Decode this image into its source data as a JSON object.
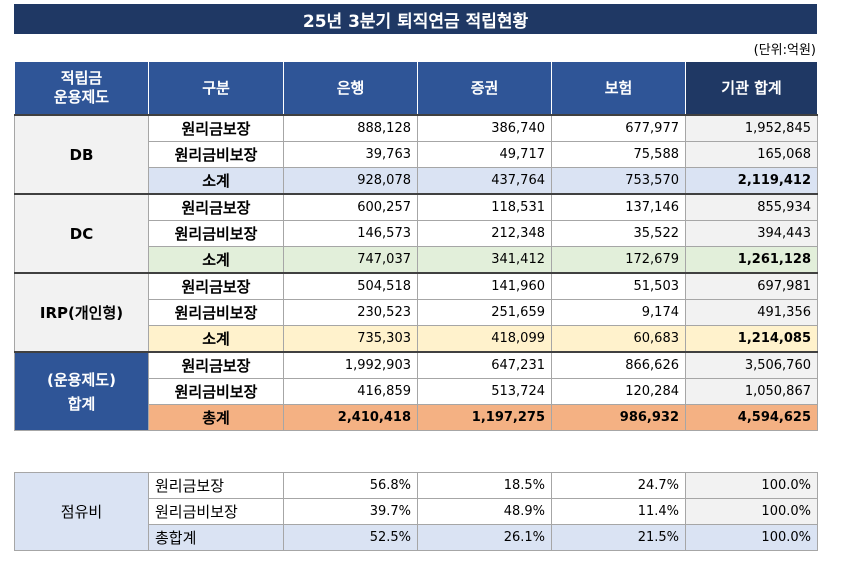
{
  "title": "25년 3분기 퇴직연금 적립현황",
  "unit": "(단위:억원)",
  "headers": [
    "적립금\n운용제도",
    "구분",
    "은행",
    "증권",
    "보험",
    "기관 합계"
  ],
  "groups": [
    {
      "name": "DB",
      "rows": [
        {
          "label": "원리금보장",
          "values": [
            "888,128",
            "386,740",
            "677,977",
            "1,952,845"
          ]
        },
        {
          "label": "원리금비보장",
          "values": [
            "39,763",
            "49,717",
            "75,588",
            "165,068"
          ]
        },
        {
          "label": "소계",
          "values": [
            "928,078",
            "437,764",
            "753,570",
            "2,119,412"
          ]
        }
      ]
    },
    {
      "name": "DC",
      "rows": [
        {
          "label": "원리금보장",
          "values": [
            "600,257",
            "118,531",
            "137,146",
            "855,934"
          ]
        },
        {
          "label": "원리금비보장",
          "values": [
            "146,573",
            "212,348",
            "35,522",
            "394,443"
          ]
        },
        {
          "label": "소계",
          "values": [
            "747,037",
            "341,412",
            "172,679",
            "1,261,128"
          ]
        }
      ]
    },
    {
      "name": "IRP(개인형)",
      "rows": [
        {
          "label": "원리금보장",
          "values": [
            "504,518",
            "141,960",
            "51,503",
            "697,981"
          ]
        },
        {
          "label": "원리금비보장",
          "values": [
            "230,523",
            "251,659",
            "9,174",
            "491,356"
          ]
        },
        {
          "label": "소계",
          "values": [
            "735,303",
            "418,099",
            "60,683",
            "1,214,085"
          ]
        }
      ]
    },
    {
      "name": "(운용제도)\n합계",
      "rows": [
        {
          "label": "원리금보장",
          "values": [
            "1,992,903",
            "647,231",
            "866,626",
            "3,506,760"
          ]
        },
        {
          "label": "원리금비보장",
          "values": [
            "416,859",
            "513,724",
            "120,284",
            "1,050,867"
          ]
        },
        {
          "label": "총계",
          "values": [
            "2,410,418",
            "1,197,275",
            "986,932",
            "4,594,625"
          ]
        }
      ]
    }
  ],
  "share": {
    "name": "점유비",
    "rows": [
      {
        "label": "원리금보장",
        "values": [
          "56.8%",
          "18.5%",
          "24.7%",
          "100.0%"
        ]
      },
      {
        "label": "원리금비보장",
        "values": [
          "39.7%",
          "48.9%",
          "11.4%",
          "100.0%"
        ]
      },
      {
        "label": "총합계",
        "values": [
          "52.5%",
          "26.1%",
          "21.5%",
          "100.0%"
        ]
      }
    ]
  },
  "colors": {
    "title_bg": "#1f3864",
    "header_bg": "#2f5597",
    "db_subtotal": "#dae3f3",
    "dc_subtotal": "#e2efda",
    "irp_subtotal": "#fff2cc",
    "grand_total": "#f4b183"
  }
}
